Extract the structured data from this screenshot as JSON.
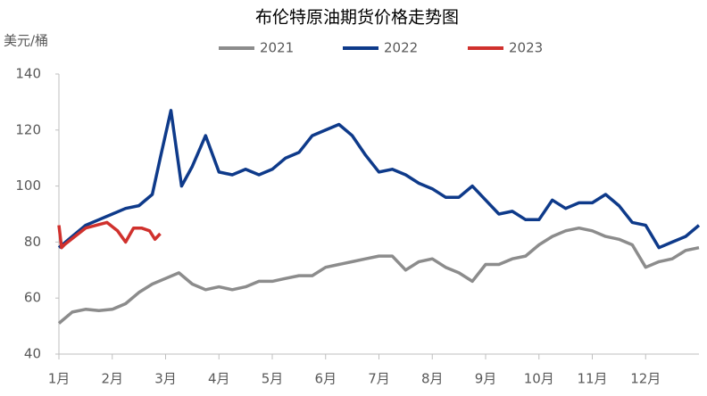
{
  "chart_data": {
    "type": "line",
    "title": "布伦特原油期货价格走势图",
    "y_label": "美元/桶",
    "xlim": [
      1,
      13
    ],
    "xticks": [
      {
        "value": 1,
        "label": "1月"
      },
      {
        "value": 2,
        "label": "2月"
      },
      {
        "value": 3,
        "label": "3月"
      },
      {
        "value": 4,
        "label": "4月"
      },
      {
        "value": 5,
        "label": "5月"
      },
      {
        "value": 6,
        "label": "6月"
      },
      {
        "value": 7,
        "label": "7月"
      },
      {
        "value": 8,
        "label": "8月"
      },
      {
        "value": 9,
        "label": "9月"
      },
      {
        "value": 10,
        "label": "10月"
      },
      {
        "value": 11,
        "label": "11月"
      },
      {
        "value": 12,
        "label": "12月"
      }
    ],
    "ylim": [
      40,
      140
    ],
    "yticks": [
      40,
      60,
      80,
      100,
      120,
      140
    ],
    "grid": false,
    "legend": "top",
    "series": [
      {
        "name": "2021",
        "color": "#8c8c8c",
        "x": [
          1,
          1.25,
          1.5,
          1.75,
          2,
          2.25,
          2.5,
          2.75,
          3,
          3.25,
          3.5,
          3.75,
          4,
          4.25,
          4.5,
          4.75,
          5,
          5.25,
          5.5,
          5.75,
          6,
          6.25,
          6.5,
          6.75,
          7,
          7.25,
          7.5,
          7.75,
          8,
          8.25,
          8.5,
          8.75,
          9,
          9.25,
          9.5,
          9.75,
          10,
          10.25,
          10.5,
          10.75,
          11,
          11.25,
          11.5,
          11.75,
          12,
          12.25,
          12.5,
          12.75,
          13
        ],
        "values": [
          51,
          55,
          56,
          55.5,
          56,
          58,
          62,
          65,
          67,
          69,
          65,
          63,
          64,
          63,
          64,
          66,
          66,
          67,
          68,
          68,
          71,
          72,
          73,
          74,
          75,
          75,
          70,
          73,
          74,
          71,
          69,
          66,
          72,
          72,
          74,
          75,
          79,
          82,
          84,
          85,
          84,
          82,
          81,
          79,
          71,
          73,
          74,
          77,
          78
        ]
      },
      {
        "name": "2022",
        "color": "#0e3a8a",
        "x": [
          1,
          1.25,
          1.5,
          1.75,
          2,
          2.25,
          2.5,
          2.75,
          2.9,
          3.1,
          3.3,
          3.5,
          3.75,
          4,
          4.25,
          4.5,
          4.75,
          5,
          5.25,
          5.5,
          5.75,
          6,
          6.25,
          6.5,
          6.75,
          7,
          7.25,
          7.5,
          7.75,
          8,
          8.25,
          8.5,
          8.75,
          9,
          9.25,
          9.5,
          9.75,
          10,
          10.25,
          10.5,
          10.75,
          11,
          11.25,
          11.5,
          11.75,
          12,
          12.25,
          12.5,
          12.75,
          13
        ],
        "values": [
          78,
          82,
          86,
          88,
          90,
          92,
          93,
          97,
          110,
          127,
          100,
          107,
          118,
          105,
          104,
          106,
          104,
          106,
          110,
          112,
          118,
          120,
          122,
          118,
          111,
          105,
          106,
          104,
          101,
          99,
          96,
          96,
          100,
          95,
          90,
          91,
          88,
          88,
          95,
          92,
          94,
          94,
          97,
          93,
          87,
          86,
          78,
          80,
          82,
          86
        ]
      },
      {
        "name": "2023",
        "color": "#d0312d",
        "x": [
          1,
          1.05,
          1.1,
          1.3,
          1.5,
          1.7,
          1.9,
          2.1,
          2.25,
          2.4,
          2.55,
          2.7,
          2.8,
          2.9
        ],
        "values": [
          86,
          78,
          79,
          82,
          85,
          86,
          87,
          84,
          80,
          85,
          85,
          84,
          81,
          83
        ]
      }
    ]
  }
}
